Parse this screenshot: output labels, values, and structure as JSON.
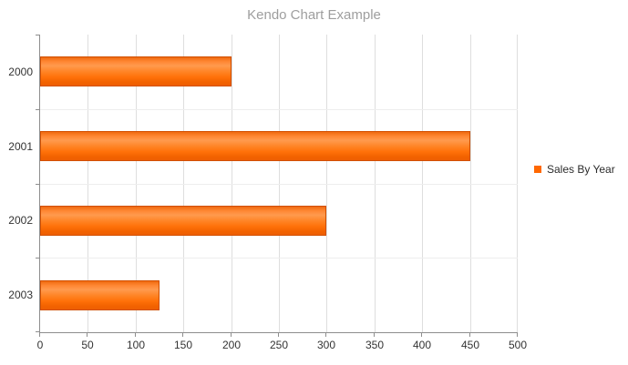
{
  "title": "Kendo Chart Example",
  "legend": {
    "position": "right",
    "items": [
      {
        "label": "Sales By Year",
        "marker_color": "#ff6800"
      }
    ]
  },
  "chart_data": {
    "type": "bar",
    "orientation": "horizontal",
    "title": "Kendo Chart Example",
    "categories": [
      "2000",
      "2001",
      "2002",
      "2003"
    ],
    "series": [
      {
        "name": "Sales By Year",
        "values": [
          200,
          450,
          300,
          125
        ],
        "color": "#ff6800"
      }
    ],
    "xlabel": "",
    "ylabel": "",
    "xlim": [
      0,
      500
    ],
    "x_ticks": [
      0,
      50,
      100,
      150,
      200,
      250,
      300,
      350,
      400,
      450,
      500
    ],
    "grid": "major-vertical-and-category-boundaries",
    "legend_position": "right"
  },
  "colors": {
    "accent": "#ff6800",
    "bar_border": "#d14f00",
    "axis_line": "#8e8e8e",
    "grid_vertical": "#dedede",
    "grid_horizontal": "#ededed",
    "title_text": "#9e9e9e",
    "axis_label_text": "#333333",
    "legend_text": "#2b2b2b"
  }
}
